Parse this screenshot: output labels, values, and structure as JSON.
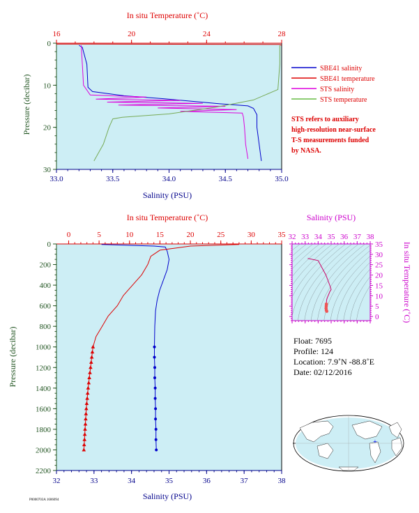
{
  "top_chart": {
    "top_axis_label": "In situ Temperature (˚C)",
    "bottom_axis_label": "Salinity (PSU)",
    "left_axis_label": "Pressure (decibar)",
    "legend": [
      {
        "label": "SBE41 salinity",
        "color": "#0000cc"
      },
      {
        "label": "SBE41 temperature",
        "color": "#dd0000"
      },
      {
        "label": "STS salinity",
        "color": "#dd00dd"
      },
      {
        "label": "STS temperature",
        "color": "#66bb44"
      }
    ],
    "note_lines": [
      "STS refers to auxiliary",
      "high-resolution near-surface",
      "T-S measurements funded",
      "by NASA."
    ]
  },
  "bottom_chart": {
    "top_axis_label": "In situ Temperature (˚C)",
    "bottom_axis_label": "Salinity (PSU)",
    "left_axis_label": "Pressure (decibar)"
  },
  "ts_inset": {
    "top_axis_label": "Salinity (PSU)",
    "right_axis_label": "In situ Temperature (˚C)"
  },
  "float_info": {
    "float": "Float:  7695",
    "profile": "Profile:  124",
    "location": "Location:  7.9˚N  -88.8˚E",
    "date": "Date:  02/12/2016"
  },
  "footer_code": "P0000703A 1606094",
  "colors": {
    "plot_bg": "#cdeef5",
    "salinity_axis": "#00008b",
    "temperature_axis": "#dd0000",
    "pressure_axis": "#225522",
    "inset_axis": "#cc00cc",
    "sbe_salinity": "#0000cc",
    "sbe_temperature": "#dd0000",
    "sts_salinity": "#dd00dd",
    "sts_temperature": "#77aa55"
  },
  "chart_data": [
    {
      "id": "top",
      "type": "line",
      "y_label": "Pressure (decibar)",
      "y_range": [
        0,
        30
      ],
      "y_ticks": [
        0,
        10,
        20,
        30
      ],
      "y_inverted": true,
      "salinity_range": [
        33.0,
        35.0
      ],
      "salinity_ticks": [
        33.0,
        33.5,
        34.0,
        34.5,
        35.0
      ],
      "temperature_range": [
        16,
        28
      ],
      "temperature_ticks": [
        16,
        20,
        24,
        28
      ],
      "series": [
        {
          "name": "SBE41 salinity",
          "axis": "salinity",
          "points": [
            [
              33.2,
              0.5
            ],
            [
              33.23,
              1
            ],
            [
              33.27,
              5
            ],
            [
              33.28,
              10.5
            ],
            [
              33.32,
              11.5
            ],
            [
              33.6,
              12.5
            ],
            [
              33.95,
              13.2
            ],
            [
              34.2,
              13.8
            ],
            [
              34.45,
              14.4
            ],
            [
              34.7,
              14.9
            ],
            [
              34.75,
              15.5
            ],
            [
              34.78,
              17
            ],
            [
              34.78,
              20
            ],
            [
              34.8,
              24
            ],
            [
              34.82,
              28
            ]
          ]
        },
        {
          "name": "SBE41 temperature",
          "axis": "temperature",
          "points": [
            [
              16.0,
              0.2
            ],
            [
              27.9,
              0.3
            ],
            [
              28.0,
              0.5
            ]
          ]
        },
        {
          "name": "STS salinity",
          "axis": "salinity",
          "points": [
            [
              33.22,
              0.5
            ],
            [
              33.23,
              5
            ],
            [
              33.24,
              10
            ],
            [
              33.3,
              12.3
            ],
            [
              33.8,
              12.8
            ],
            [
              33.35,
              13.3
            ],
            [
              34.1,
              13.6
            ],
            [
              33.45,
              14.0
            ],
            [
              34.3,
              14.3
            ],
            [
              33.55,
              14.7
            ],
            [
              34.5,
              15.0
            ],
            [
              33.9,
              15.4
            ],
            [
              34.6,
              15.8
            ],
            [
              34.1,
              16.2
            ],
            [
              34.65,
              16.6
            ],
            [
              34.66,
              17.5
            ],
            [
              34.67,
              20
            ],
            [
              34.68,
              24
            ],
            [
              34.7,
              27.5
            ]
          ]
        },
        {
          "name": "STS temperature",
          "axis": "temperature",
          "points": [
            [
              27.9,
              0.5
            ],
            [
              27.9,
              5
            ],
            [
              27.8,
              11
            ],
            [
              26.5,
              13.5
            ],
            [
              24.5,
              15.2
            ],
            [
              22.0,
              16.8
            ],
            [
              19.5,
              17.6
            ],
            [
              19.0,
              18.0
            ],
            [
              18.8,
              20
            ],
            [
              18.5,
              24
            ],
            [
              18.0,
              28
            ]
          ]
        }
      ]
    },
    {
      "id": "bottom",
      "type": "line",
      "y_label": "Pressure (decibar)",
      "y_range": [
        0,
        2200
      ],
      "y_ticks": [
        0,
        200,
        400,
        600,
        800,
        1000,
        1200,
        1400,
        1600,
        1800,
        2000,
        2200
      ],
      "y_inverted": true,
      "salinity_range": [
        32,
        38
      ],
      "salinity_ticks": [
        32,
        33,
        34,
        35,
        36,
        37,
        38
      ],
      "temperature_range": [
        -2,
        35
      ],
      "temperature_ticks": [
        0,
        5,
        10,
        15,
        20,
        25,
        30,
        35
      ],
      "series": [
        {
          "name": "SBE41 salinity",
          "axis": "salinity",
          "points": [
            [
              33.2,
              5
            ],
            [
              34.6,
              20
            ],
            [
              34.9,
              30
            ],
            [
              34.95,
              70
            ],
            [
              35.0,
              150
            ],
            [
              34.95,
              250
            ],
            [
              34.85,
              350
            ],
            [
              34.75,
              450
            ],
            [
              34.68,
              550
            ],
            [
              34.64,
              650
            ],
            [
              34.62,
              800
            ],
            [
              34.61,
              1000
            ],
            [
              34.61,
              1100
            ],
            [
              34.62,
              1200
            ],
            [
              34.62,
              1300
            ],
            [
              34.63,
              1400
            ],
            [
              34.63,
              1500
            ],
            [
              34.64,
              1600
            ],
            [
              34.64,
              1700
            ],
            [
              34.65,
              1800
            ],
            [
              34.65,
              1900
            ],
            [
              34.66,
              2000
            ]
          ]
        },
        {
          "name": "SBE41 temperature",
          "axis": "temperature",
          "points": [
            [
              28.0,
              5
            ],
            [
              20.0,
              20
            ],
            [
              15.0,
              60
            ],
            [
              13.5,
              120
            ],
            [
              13.0,
              200
            ],
            [
              12.0,
              300
            ],
            [
              10.5,
              400
            ],
            [
              9.0,
              500
            ],
            [
              8.0,
              600
            ],
            [
              6.5,
              700
            ],
            [
              5.5,
              800
            ],
            [
              4.5,
              900
            ],
            [
              4.0,
              1000
            ],
            [
              3.8,
              1100
            ],
            [
              3.6,
              1200
            ],
            [
              3.4,
              1300
            ],
            [
              3.2,
              1400
            ],
            [
              3.05,
              1500
            ],
            [
              2.9,
              1600
            ],
            [
              2.8,
              1700
            ],
            [
              2.7,
              1800
            ],
            [
              2.6,
              1900
            ],
            [
              2.5,
              2000
            ]
          ]
        }
      ],
      "markers_below_pressure": 1000
    },
    {
      "id": "ts_inset",
      "type": "scatter",
      "x_label": "Salinity (PSU)",
      "y_label": "In situ Temperature (˚C)",
      "x_range": [
        32,
        38
      ],
      "x_ticks": [
        32,
        33,
        34,
        35,
        36,
        37,
        38
      ],
      "y_range": [
        -2,
        35
      ],
      "y_ticks": [
        0,
        5,
        10,
        15,
        20,
        25,
        30,
        35
      ],
      "series": [
        {
          "name": "SBE41 T-S",
          "points": [
            [
              33.2,
              28
            ],
            [
              34.0,
              27
            ],
            [
              34.6,
              20
            ],
            [
              34.9,
              15
            ],
            [
              35.0,
              13
            ],
            [
              34.9,
              12
            ],
            [
              34.8,
              10.5
            ],
            [
              34.7,
              9
            ],
            [
              34.65,
              8
            ],
            [
              34.63,
              6
            ],
            [
              34.62,
              5
            ],
            [
              34.61,
              4
            ],
            [
              34.63,
              3
            ],
            [
              34.66,
              2.5
            ]
          ]
        }
      ]
    }
  ]
}
